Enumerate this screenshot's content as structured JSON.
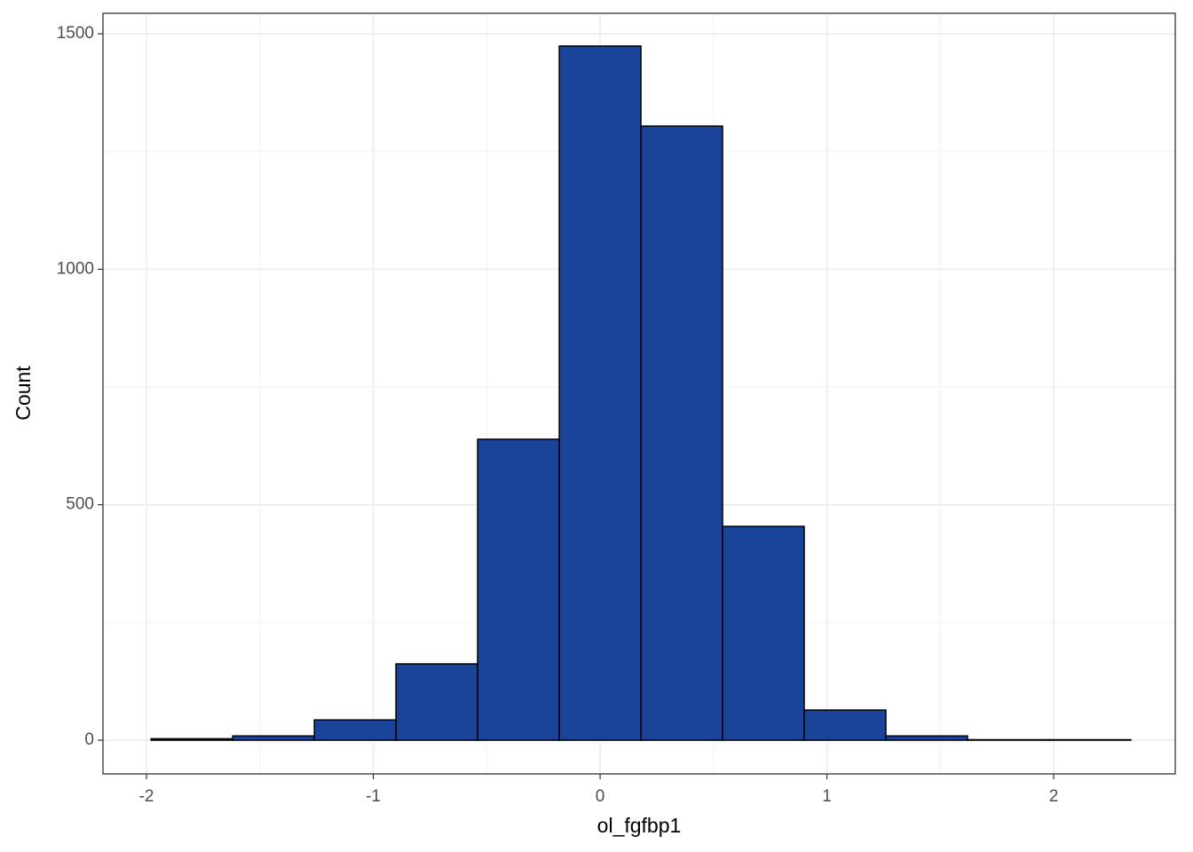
{
  "chart_data": {
    "type": "histogram",
    "x_label": "ol_fgfbp1",
    "y_label": "Count",
    "bins": [
      -1.98,
      -1.62,
      -1.26,
      -0.9,
      -0.54,
      -0.18,
      0.18,
      0.54,
      0.9,
      1.26,
      1.62,
      1.98,
      2.34
    ],
    "values": [
      3,
      9,
      43,
      162,
      639,
      1474,
      1304,
      454,
      64,
      9,
      1,
      1
    ],
    "color": "#1a449a",
    "edge_color": "#000000",
    "xlim": [
      -2.192,
      2.536
    ],
    "ylim": [
      -71.6,
      1543.5
    ],
    "xticks": [
      -2,
      -1,
      0,
      1,
      2
    ],
    "yticks": [
      0,
      500,
      1000,
      1500
    ],
    "x_minor_ticks": [
      -1.5,
      -0.5,
      0.5,
      1.5
    ],
    "y_minor_ticks": [
      250,
      750,
      1250
    ],
    "grid": true
  }
}
